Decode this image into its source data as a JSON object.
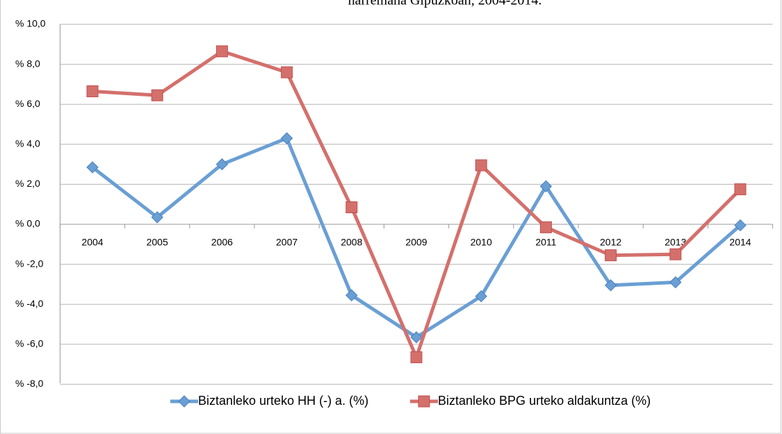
{
  "chart_data": {
    "type": "line",
    "title": "harremana Gipuzkoan, 2004-2014.",
    "categories": [
      "2004",
      "2005",
      "2006",
      "2007",
      "2008",
      "2009",
      "2010",
      "2011",
      "2012",
      "2013",
      "2014"
    ],
    "series": [
      {
        "name": "Biztanleko urteko HH (-) a. (%)",
        "color": "#6a9fd4",
        "marker": "diamond",
        "values": [
          2.85,
          0.35,
          3.0,
          4.3,
          -3.55,
          -5.65,
          -3.6,
          1.9,
          -3.05,
          -2.9,
          -0.05
        ]
      },
      {
        "name": "Biztanleko BPG urteko aldakuntza (%)",
        "color": "#d4706c",
        "marker": "square",
        "values": [
          6.65,
          6.45,
          8.65,
          7.6,
          0.85,
          -6.65,
          2.95,
          -0.15,
          -1.55,
          -1.5,
          1.75
        ]
      }
    ],
    "ylim": [
      -8,
      10
    ],
    "yticks": [
      {
        "value": 10,
        "label": "% 10,0"
      },
      {
        "value": 8,
        "label": "% 8,0"
      },
      {
        "value": 6,
        "label": "% 6,0"
      },
      {
        "value": 4,
        "label": "% 4,0"
      },
      {
        "value": 2,
        "label": "% 2,0"
      },
      {
        "value": 0,
        "label": "% 0,0"
      },
      {
        "value": -2,
        "label": "% -2,0"
      },
      {
        "value": -4,
        "label": "% -4,0"
      },
      {
        "value": -6,
        "label": "% -6,0"
      },
      {
        "value": -8,
        "label": "% -8,0"
      }
    ],
    "grid": true,
    "legend": "bottom"
  }
}
